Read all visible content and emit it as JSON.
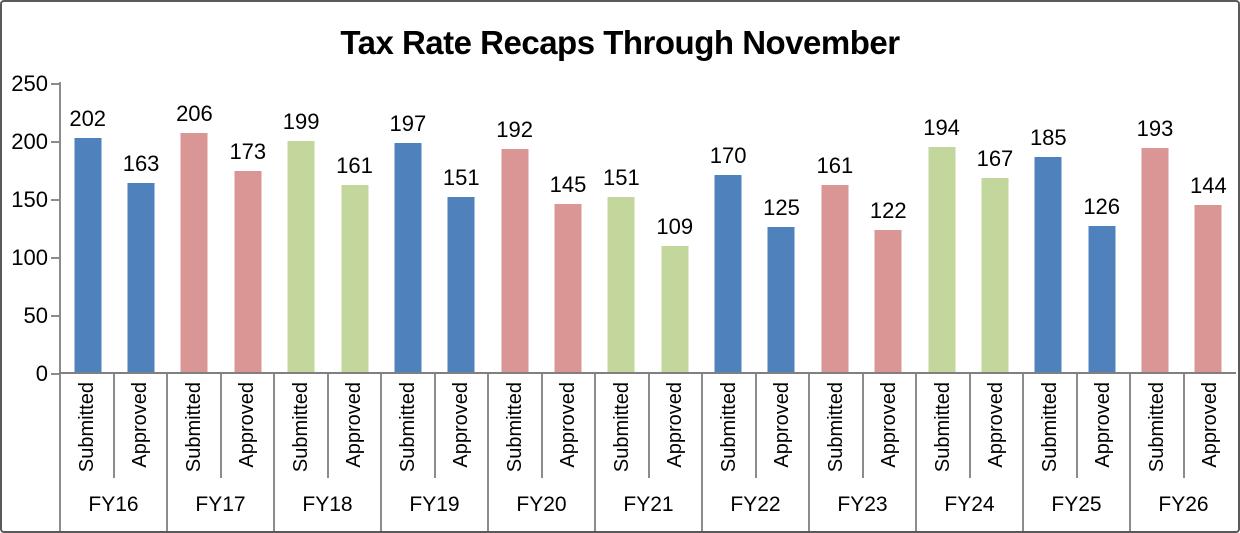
{
  "title": "Tax Rate Recaps Through November",
  "chart_data": {
    "type": "bar",
    "title": "Tax Rate Recaps Through November",
    "categories": [
      "FY16",
      "FY17",
      "FY18",
      "FY19",
      "FY20",
      "FY21",
      "FY22",
      "FY23",
      "FY24",
      "FY25",
      "FY26"
    ],
    "series": [
      {
        "name": "Submitted",
        "values": [
          202,
          206,
          199,
          197,
          192,
          151,
          170,
          161,
          194,
          185,
          193
        ]
      },
      {
        "name": "Approved",
        "values": [
          163,
          173,
          161,
          151,
          145,
          109,
          125,
          122,
          167,
          126,
          144
        ]
      }
    ],
    "group_colors": [
      "#4F81BD",
      "#D99694",
      "#C3D69B",
      "#4F81BD",
      "#D99694",
      "#C3D69B",
      "#4F81BD",
      "#D99694",
      "#C3D69B",
      "#4F81BD",
      "#D99694"
    ],
    "y_axis": {
      "min": 0,
      "max": 250,
      "step": 50,
      "ticks": [
        250,
        200,
        150,
        100,
        50,
        0
      ]
    },
    "data_labels_shown": true,
    "grid": false,
    "legend": "none",
    "colors": {
      "blue": "#4F81BD",
      "salmon": "#D99694",
      "green": "#C3D69B",
      "axis_line": "#8C8C8C",
      "baseline": "#808080",
      "text": "#000000",
      "frame_border": "#595959"
    }
  }
}
